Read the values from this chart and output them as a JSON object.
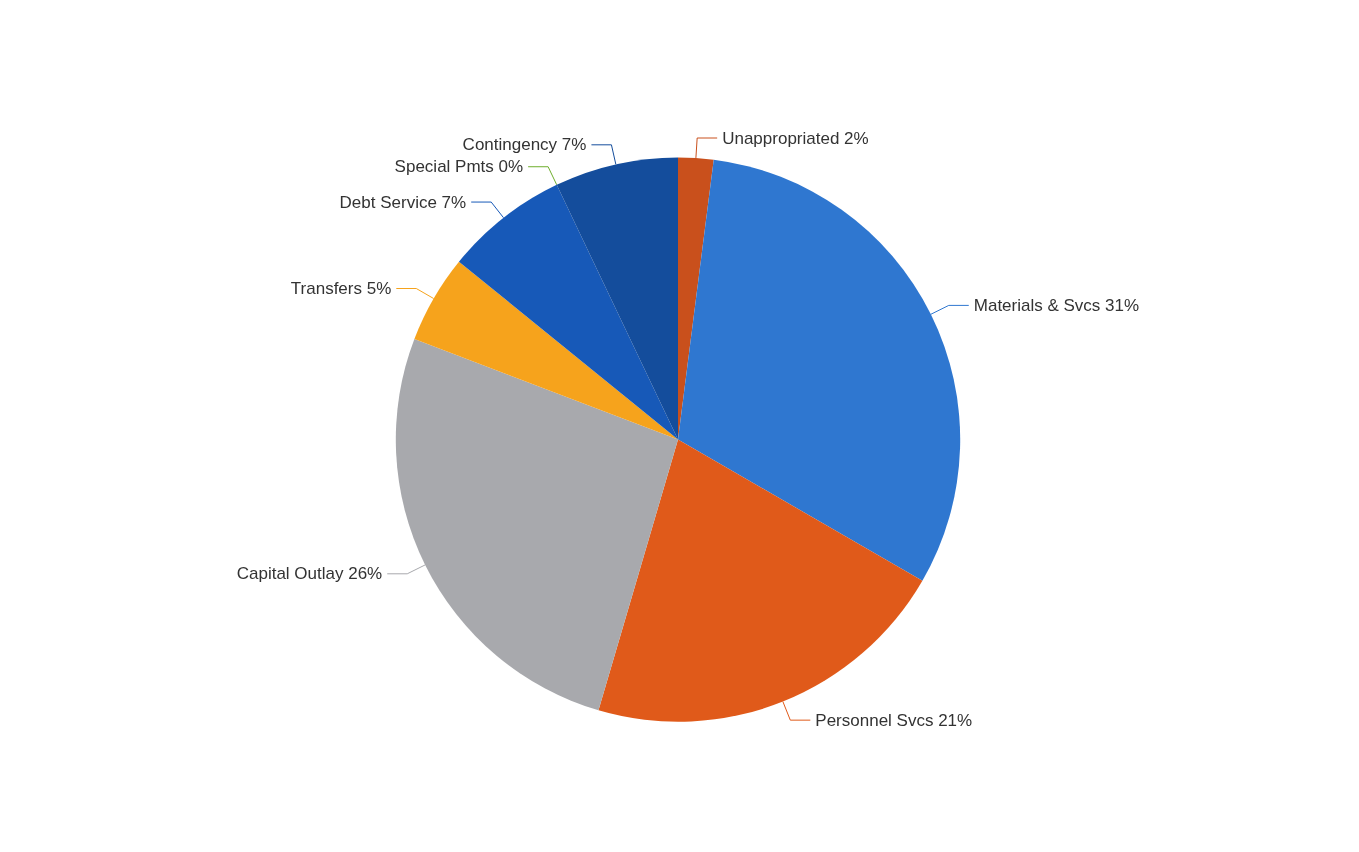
{
  "chart_data": {
    "type": "pie",
    "categories": [
      "Unappropriated",
      "Materials & Svcs",
      "Personnel Svcs",
      "Capital Outlay",
      "Transfers",
      "Debt Service",
      "Special Pmts",
      "Contingency"
    ],
    "values": [
      2,
      31,
      21,
      26,
      5,
      7,
      0,
      7
    ],
    "value_labels": [
      "2%",
      "31%",
      "21%",
      "26%",
      "5%",
      "7%",
      "0%",
      "7%"
    ],
    "colors": [
      "#c9501c",
      "#2f77d0",
      "#e05a1a",
      "#a8a9ad",
      "#f6a31c",
      "#1759b8",
      "#6fae2d",
      "#144d9c"
    ]
  }
}
